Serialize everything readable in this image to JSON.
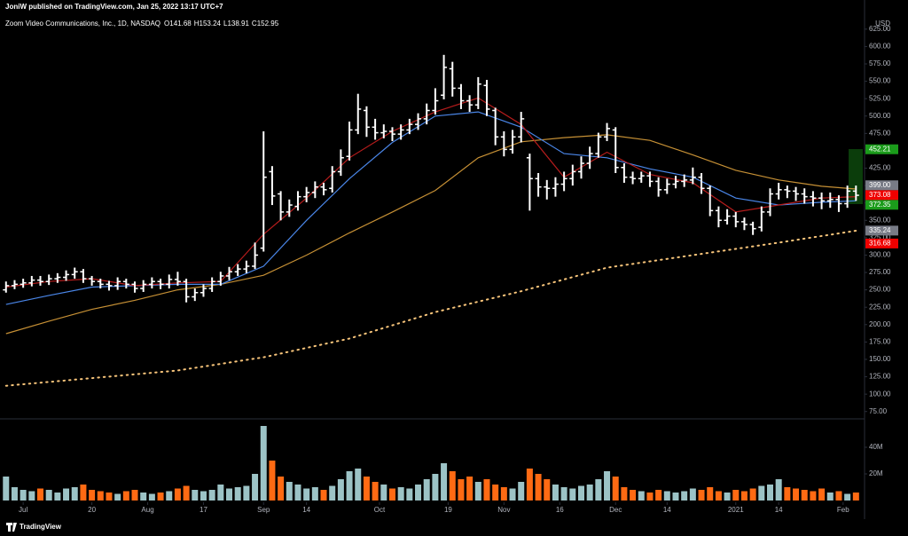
{
  "chart_data": {
    "type": "ohlc",
    "header": "JoniW published on TradingView.com, Jan 25, 2022 13:17 UTC+7",
    "legend": {
      "symbol": "Zoom Video Communications, Inc., 1D, NASDAQ",
      "ohlc": [
        {
          "key": "O",
          "value": 141.68
        },
        {
          "key": "H",
          "value": 153.24
        },
        {
          "key": "L",
          "value": 138.91
        },
        {
          "key": "C",
          "value": 152.95
        }
      ]
    },
    "currency": "USD",
    "source": "TradingView",
    "bar_color": "#ffffff",
    "xlim": [
      -0.7,
      100
    ],
    "xticks": [
      {
        "value": 2,
        "label": "Jul"
      },
      {
        "value": 10,
        "label": "20"
      },
      {
        "value": 16.5,
        "label": "Aug"
      },
      {
        "value": 23,
        "label": "17"
      },
      {
        "value": 30,
        "label": "Sep"
      },
      {
        "value": 35,
        "label": "14"
      },
      {
        "value": 43.5,
        "label": "Oct"
      },
      {
        "value": 51.5,
        "label": "19"
      },
      {
        "value": 58,
        "label": "Nov"
      },
      {
        "value": 64.5,
        "label": "16"
      },
      {
        "value": 71,
        "label": "Dec"
      },
      {
        "value": 77,
        "label": "14"
      },
      {
        "value": 85,
        "label": "2021"
      },
      {
        "value": 90,
        "label": "14"
      },
      {
        "value": 97.5,
        "label": "Feb"
      }
    ],
    "ylim": [
      67,
      635
    ],
    "yticks": [
      {
        "value": 75,
        "label": "75.00"
      },
      {
        "value": 100,
        "label": "100.00"
      },
      {
        "value": 125,
        "label": "125.00"
      },
      {
        "value": 150,
        "label": "150.00"
      },
      {
        "value": 175,
        "label": "175.00"
      },
      {
        "value": 200,
        "label": "200.00"
      },
      {
        "value": 225,
        "label": "225.00"
      },
      {
        "value": 250,
        "label": "250.00"
      },
      {
        "value": 275,
        "label": "275.00"
      },
      {
        "value": 300,
        "label": "300.00"
      },
      {
        "value": 325,
        "label": "325.00"
      },
      {
        "value": 350,
        "label": "350.00"
      },
      {
        "value": 375,
        "label": "375.00"
      },
      {
        "value": 400,
        "label": "400.00"
      },
      {
        "value": 425,
        "label": "425.00"
      },
      {
        "value": 450,
        "label": "450.00"
      },
      {
        "value": 475,
        "label": "475.00"
      },
      {
        "value": 500,
        "label": "500.00"
      },
      {
        "value": 525,
        "label": "525.00"
      },
      {
        "value": 550,
        "label": "550.00"
      },
      {
        "value": 575,
        "label": "575.00"
      },
      {
        "value": 600,
        "label": "600.00"
      },
      {
        "value": 625,
        "label": "625.00"
      }
    ],
    "open": [
      250,
      256,
      258,
      260,
      264,
      262,
      266,
      268,
      272,
      276,
      266,
      262,
      258,
      256,
      262,
      258,
      252,
      258,
      262,
      258,
      265,
      262,
      240,
      246,
      252,
      262,
      270,
      276,
      280,
      284,
      310,
      420,
      388,
      362,
      370,
      384,
      390,
      398,
      396,
      420,
      442,
      480,
      508,
      484,
      476,
      478,
      474,
      480,
      488,
      496,
      508,
      530,
      568,
      540,
      522,
      516,
      544,
      508,
      470,
      452,
      470,
      440,
      410,
      398,
      396,
      402,
      410,
      420,
      432,
      446,
      470,
      480,
      426,
      412,
      410,
      414,
      406,
      394,
      402,
      406,
      408,
      412,
      396,
      364,
      350,
      356,
      348,
      344,
      340,
      362,
      388,
      394,
      392,
      388,
      384,
      382,
      378,
      380,
      374,
      392
    ],
    "high": [
      262,
      264,
      266,
      270,
      270,
      272,
      274,
      278,
      282,
      280,
      270,
      266,
      263,
      268,
      266,
      262,
      264,
      268,
      266,
      272,
      276,
      266,
      252,
      258,
      268,
      276,
      283,
      287,
      292,
      318,
      478,
      428,
      392,
      380,
      392,
      398,
      406,
      404,
      428,
      452,
      492,
      532,
      514,
      496,
      488,
      484,
      488,
      496,
      504,
      518,
      540,
      588,
      578,
      546,
      530,
      556,
      552,
      512,
      478,
      480,
      506,
      446,
      418,
      408,
      412,
      420,
      430,
      442,
      456,
      476,
      490,
      484,
      432,
      420,
      420,
      420,
      412,
      410,
      414,
      416,
      426,
      418,
      400,
      370,
      366,
      362,
      354,
      348,
      370,
      396,
      404,
      400,
      398,
      396,
      392,
      390,
      390,
      386,
      400,
      400
    ],
    "low": [
      246,
      251,
      253,
      255,
      256,
      257,
      260,
      263,
      266,
      260,
      256,
      252,
      249,
      250,
      252,
      246,
      247,
      252,
      251,
      252,
      256,
      232,
      234,
      240,
      247,
      256,
      264,
      270,
      274,
      280,
      305,
      372,
      350,
      355,
      364,
      376,
      382,
      386,
      390,
      414,
      436,
      474,
      470,
      466,
      468,
      464,
      466,
      474,
      480,
      488,
      502,
      524,
      528,
      510,
      506,
      510,
      500,
      458,
      442,
      446,
      462,
      364,
      384,
      380,
      384,
      392,
      400,
      410,
      424,
      440,
      464,
      418,
      404,
      402,
      404,
      398,
      384,
      388,
      396,
      398,
      402,
      388,
      356,
      340,
      344,
      340,
      336,
      329,
      334,
      356,
      380,
      382,
      378,
      374,
      370,
      366,
      368,
      362,
      368,
      378
    ],
    "close": [
      256,
      258,
      260,
      264,
      262,
      266,
      268,
      272,
      276,
      266,
      262,
      258,
      256,
      262,
      258,
      252,
      258,
      262,
      258,
      265,
      262,
      240,
      246,
      252,
      262,
      270,
      276,
      280,
      284,
      300,
      412,
      385,
      362,
      372,
      384,
      390,
      398,
      394,
      420,
      440,
      480,
      510,
      484,
      476,
      478,
      474,
      480,
      488,
      496,
      508,
      522,
      570,
      540,
      522,
      516,
      546,
      510,
      470,
      452,
      470,
      496,
      410,
      398,
      396,
      402,
      410,
      420,
      432,
      446,
      470,
      482,
      426,
      412,
      410,
      414,
      406,
      394,
      402,
      406,
      408,
      412,
      396,
      364,
      350,
      356,
      348,
      344,
      338,
      362,
      388,
      394,
      392,
      388,
      384,
      382,
      378,
      380,
      374,
      392,
      386
    ],
    "lines": [
      {
        "color": "#f7c47a",
        "style": "dotted",
        "x": [
          0,
          10,
          20,
          30,
          40,
          50,
          60,
          70,
          80,
          90,
          99
        ],
        "values": [
          112,
          123,
          134,
          153,
          180,
          218,
          248,
          282,
          300,
          318,
          335
        ]
      },
      {
        "color": "#c69035",
        "style": "solid",
        "x": [
          0,
          5,
          10,
          15,
          20,
          25,
          30,
          35,
          40,
          45,
          50,
          55,
          60,
          65,
          70,
          75,
          80,
          85,
          90,
          95,
          99
        ],
        "values": [
          187,
          205,
          222,
          235,
          250,
          258,
          271,
          300,
          332,
          362,
          393,
          440,
          463,
          469,
          473,
          465,
          444,
          422,
          408,
          399,
          395
        ]
      },
      {
        "color": "#4a86e8",
        "style": "solid",
        "x": [
          0,
          5,
          10,
          15,
          20,
          25,
          30,
          35,
          40,
          45,
          50,
          55,
          60,
          65,
          70,
          75,
          80,
          85,
          90,
          95,
          99
        ],
        "values": [
          229,
          242,
          254,
          256,
          258,
          258,
          284,
          350,
          410,
          462,
          500,
          506,
          484,
          446,
          440,
          424,
          412,
          382,
          372,
          376,
          378
        ]
      },
      {
        "color": "#b71c1c",
        "style": "solid",
        "x": [
          0,
          5,
          10,
          15,
          20,
          25,
          30,
          35,
          40,
          45,
          50,
          55,
          60,
          65,
          70,
          75,
          80,
          85,
          90,
          95,
          99
        ],
        "values": [
          254,
          262,
          266,
          256,
          260,
          262,
          330,
          382,
          440,
          478,
          506,
          526,
          488,
          412,
          448,
          416,
          404,
          362,
          372,
          382,
          384
        ]
      }
    ],
    "price_tags": [
      {
        "value": 452.21,
        "color": "#1b9c1b"
      },
      {
        "value": 399,
        "label": "399.00",
        "color": "#787b86"
      },
      {
        "value": 373.08,
        "color": "#f00000"
      },
      {
        "value": 372.35,
        "color": "#1b9c1b"
      },
      {
        "value": 335.24,
        "color": "#787b86"
      },
      {
        "value": 316.68,
        "color": "#f00000"
      }
    ],
    "volume": {
      "up_color": "#9cc3c6",
      "down_color": "#ff6a13",
      "ylim": [
        0,
        60
      ],
      "yticks": [
        {
          "value": 20,
          "label": "20M"
        },
        {
          "value": 40,
          "label": "40M"
        }
      ],
      "values": [
        18,
        10,
        8,
        7,
        9,
        8,
        6,
        9,
        10,
        12,
        8,
        7,
        6,
        5,
        7,
        8,
        6,
        5,
        6,
        7,
        9,
        11,
        8,
        7,
        8,
        12,
        9,
        10,
        11,
        20,
        56,
        30,
        18,
        14,
        12,
        9,
        10,
        8,
        11,
        16,
        22,
        24,
        18,
        14,
        12,
        9,
        10,
        9,
        12,
        16,
        20,
        28,
        22,
        16,
        18,
        14,
        16,
        12,
        10,
        9,
        14,
        24,
        20,
        16,
        12,
        10,
        9,
        11,
        12,
        16,
        22,
        18,
        10,
        8,
        7,
        6,
        8,
        7,
        6,
        7,
        9,
        8,
        10,
        7,
        6,
        8,
        7,
        9,
        11,
        12,
        16,
        10,
        9,
        8,
        7,
        9,
        6,
        7,
        5,
        6
      ]
    }
  }
}
